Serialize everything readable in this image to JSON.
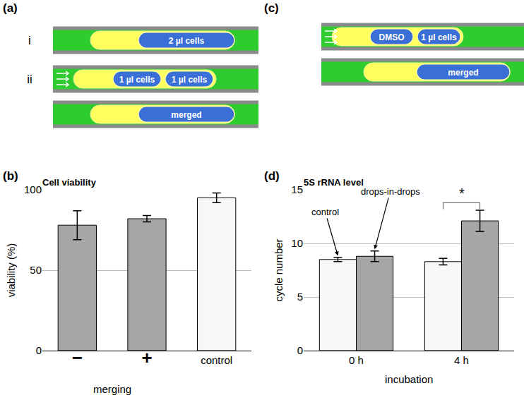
{
  "diagrams": [
    {
      "panel_label": "(a)",
      "rows": [
        {
          "label": "i",
          "channels": [
            {
              "drops": [
                "2 µl cells"
              ]
            }
          ]
        },
        {
          "label": "ii",
          "channels": [
            {
              "drops": [
                "1 µl cells",
                "1 µl cells"
              ]
            },
            {
              "drops": [
                "merged"
              ]
            }
          ]
        }
      ]
    },
    {
      "panel_label": "(c)",
      "rows": [
        {
          "channels": [
            {
              "drops": [
                "DMSO",
                "1 µl cells"
              ]
            },
            {
              "drops": [
                "merged"
              ]
            }
          ]
        }
      ]
    }
  ],
  "chart_data": [
    {
      "panel_label": "(b)",
      "type": "bar",
      "title": "Cell viability",
      "x_label": "merging",
      "x_label_categories": [
        "−",
        "+"
      ],
      "y_label": "viability (%)",
      "categories": [
        "−",
        "+",
        "control"
      ],
      "values": [
        78,
        82,
        95
      ],
      "errors": [
        9,
        2,
        3
      ],
      "colors": [
        "#a6a6a6",
        "#a6a6a6",
        "#f7f7f7"
      ],
      "ylim": [
        0,
        100
      ],
      "yticks": [
        0,
        50,
        100
      ],
      "grid": true
    },
    {
      "panel_label": "(d)",
      "type": "bar",
      "title": "5S rRNA level",
      "x_label": "incubation",
      "y_label": "cycle number",
      "categories": [
        "0 h",
        "4 h"
      ],
      "series": [
        {
          "name": "control",
          "color": "#f7f7f7",
          "values": [
            8.5,
            8.3
          ],
          "errors": [
            0.2,
            0.3
          ]
        },
        {
          "name": "drops-in-drops",
          "color": "#a6a6a6",
          "values": [
            8.8,
            12.1
          ],
          "errors": [
            0.5,
            1.0
          ]
        }
      ],
      "annotations": [
        {
          "text": "control",
          "category": "0 h",
          "series": "control"
        },
        {
          "text": "drops-in-drops",
          "category": "0 h",
          "series": "drops-in-drops"
        }
      ],
      "significance": [
        {
          "text": "*",
          "category": "4 h",
          "between": [
            "control",
            "drops-in-drops"
          ]
        }
      ],
      "ylim": [
        0,
        15
      ],
      "yticks": [
        0,
        5,
        10,
        15
      ],
      "grid": true
    }
  ]
}
